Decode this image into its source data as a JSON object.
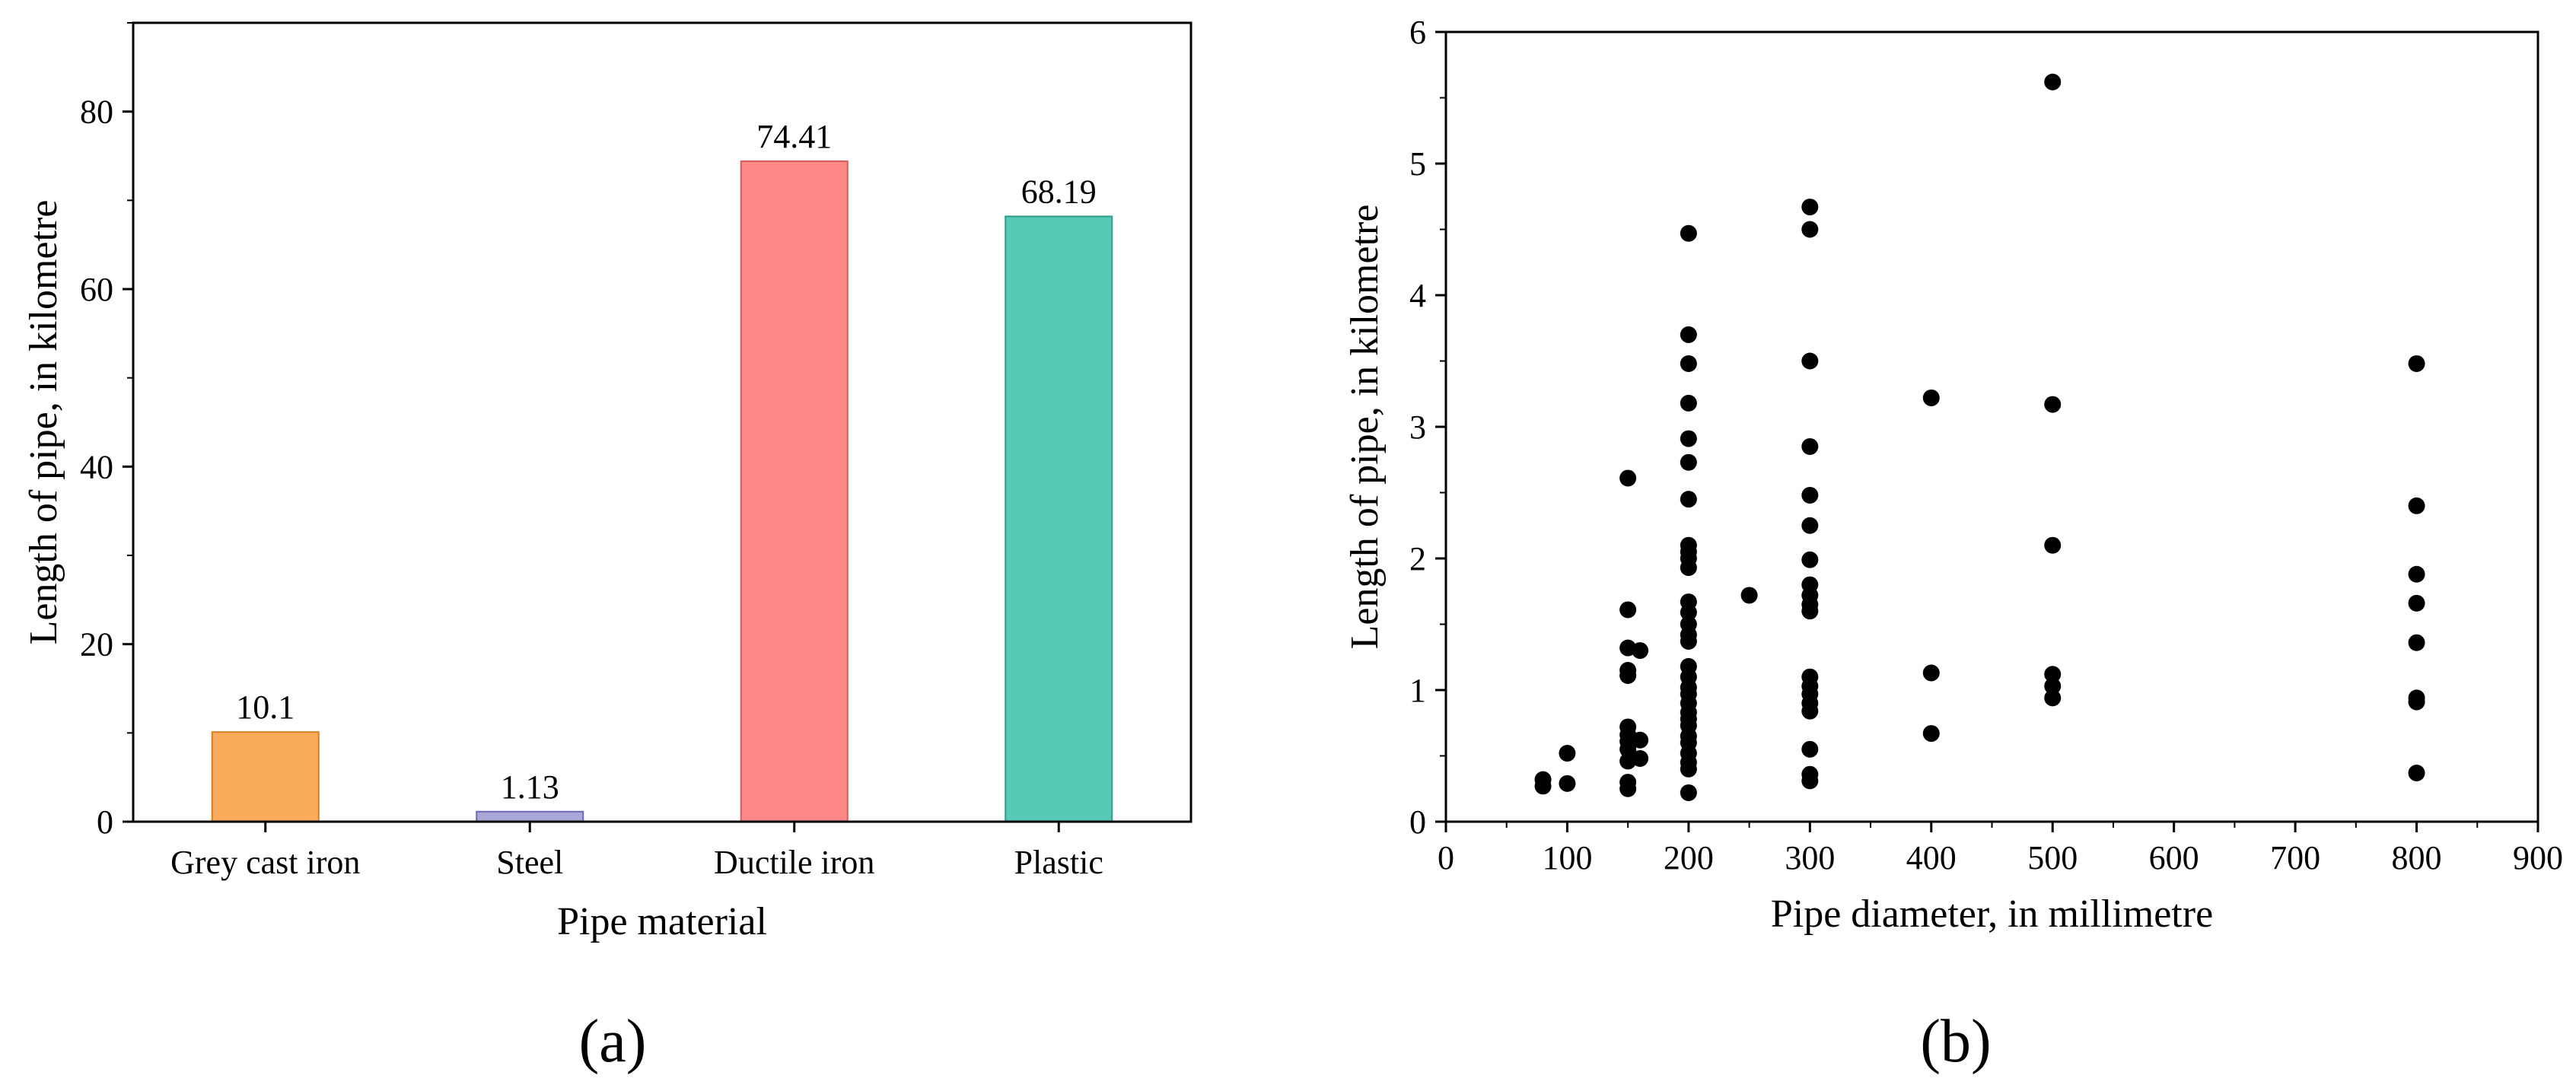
{
  "chart_data": [
    {
      "type": "bar",
      "panel_label": "(a)",
      "xlabel": "Pipe material",
      "ylabel": "Length of pipe, in kilometre",
      "ylim": [
        0,
        90
      ],
      "yticks": [
        0,
        20,
        40,
        60,
        80
      ],
      "categories": [
        "Grey cast iron",
        "Steel",
        "Ductile iron",
        "Plastic"
      ],
      "values": [
        10.1,
        1.13,
        74.41,
        68.19
      ],
      "data_labels": [
        "10.1",
        "1.13",
        "74.41",
        "68.19"
      ],
      "colors": [
        "#fbab5c",
        "#a9a9d9",
        "#fc8986",
        "#57c9b7"
      ],
      "edge_colors": [
        "#d87e22",
        "#6a6ab0",
        "#d65c5a",
        "#2e9c8a"
      ]
    },
    {
      "type": "scatter",
      "panel_label": "(b)",
      "xlabel": "Pipe diameter, in millimetre",
      "ylabel": "Length of pipe, in kilometre",
      "xlim": [
        0,
        900
      ],
      "ylim": [
        0,
        6
      ],
      "xticks": [
        0,
        100,
        200,
        300,
        400,
        500,
        600,
        700,
        800,
        900
      ],
      "yticks": [
        0,
        1,
        2,
        3,
        4,
        5,
        6
      ],
      "marker_color": "#000000",
      "points": [
        [
          80,
          0.32
        ],
        [
          80,
          0.27
        ],
        [
          100,
          0.52
        ],
        [
          100,
          0.29
        ],
        [
          150,
          2.61
        ],
        [
          150,
          1.61
        ],
        [
          150,
          1.32
        ],
        [
          150,
          1.15
        ],
        [
          150,
          1.11
        ],
        [
          150,
          0.72
        ],
        [
          150,
          0.66
        ],
        [
          150,
          0.61
        ],
        [
          150,
          0.55
        ],
        [
          150,
          0.46
        ],
        [
          150,
          0.3
        ],
        [
          150,
          0.25
        ],
        [
          160,
          1.3
        ],
        [
          160,
          0.62
        ],
        [
          160,
          0.48
        ],
        [
          200,
          4.47
        ],
        [
          200,
          3.7
        ],
        [
          200,
          3.48
        ],
        [
          200,
          3.18
        ],
        [
          200,
          2.91
        ],
        [
          200,
          2.73
        ],
        [
          200,
          2.45
        ],
        [
          200,
          2.1
        ],
        [
          200,
          2.05
        ],
        [
          200,
          2.0
        ],
        [
          200,
          1.93
        ],
        [
          200,
          1.67
        ],
        [
          200,
          1.59
        ],
        [
          200,
          1.5
        ],
        [
          200,
          1.42
        ],
        [
          200,
          1.37
        ],
        [
          200,
          1.18
        ],
        [
          200,
          1.1
        ],
        [
          200,
          1.02
        ],
        [
          200,
          0.97
        ],
        [
          200,
          0.9
        ],
        [
          200,
          0.83
        ],
        [
          200,
          0.78
        ],
        [
          200,
          0.73
        ],
        [
          200,
          0.65
        ],
        [
          200,
          0.6
        ],
        [
          200,
          0.52
        ],
        [
          200,
          0.45
        ],
        [
          200,
          0.4
        ],
        [
          200,
          0.22
        ],
        [
          250,
          1.72
        ],
        [
          300,
          4.67
        ],
        [
          300,
          4.5
        ],
        [
          300,
          3.5
        ],
        [
          300,
          2.85
        ],
        [
          300,
          2.48
        ],
        [
          300,
          2.25
        ],
        [
          300,
          1.99
        ],
        [
          300,
          1.8
        ],
        [
          300,
          1.72
        ],
        [
          300,
          1.65
        ],
        [
          300,
          1.6
        ],
        [
          300,
          1.1
        ],
        [
          300,
          1.03
        ],
        [
          300,
          0.97
        ],
        [
          300,
          0.9
        ],
        [
          300,
          0.84
        ],
        [
          300,
          0.55
        ],
        [
          300,
          0.36
        ],
        [
          300,
          0.31
        ],
        [
          400,
          3.22
        ],
        [
          400,
          1.13
        ],
        [
          400,
          0.67
        ],
        [
          500,
          5.62
        ],
        [
          500,
          3.17
        ],
        [
          500,
          2.1
        ],
        [
          500,
          1.12
        ],
        [
          500,
          1.03
        ],
        [
          500,
          0.94
        ],
        [
          800,
          3.48
        ],
        [
          800,
          2.4
        ],
        [
          800,
          1.88
        ],
        [
          800,
          1.66
        ],
        [
          800,
          1.36
        ],
        [
          800,
          0.94
        ],
        [
          800,
          0.91
        ],
        [
          800,
          0.37
        ]
      ]
    }
  ]
}
